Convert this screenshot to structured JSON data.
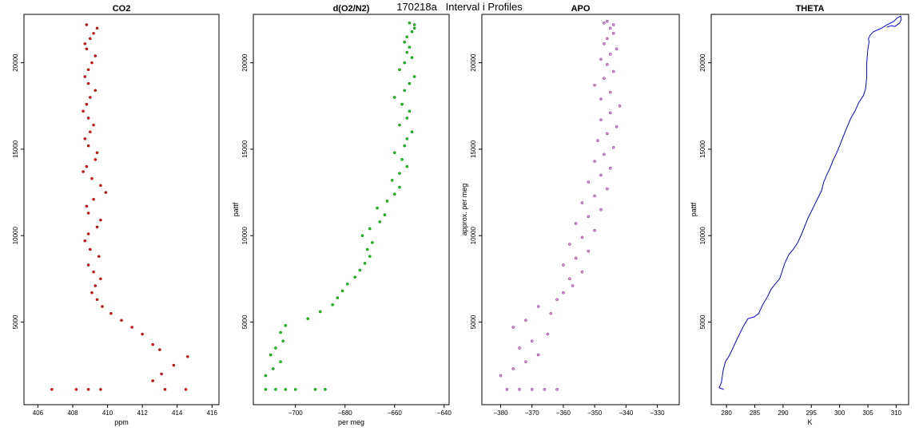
{
  "figure": {
    "title": "170218a   Interval i Profiles"
  },
  "chart_data": [
    {
      "type": "scatter",
      "title": "CO2",
      "xlabel": "ppm",
      "ylabel": "",
      "xlim": [
        405.2,
        416.4
      ],
      "ylim": [
        220,
        22800
      ],
      "xticks": [
        406,
        408,
        410,
        412,
        414,
        416
      ],
      "yticks": [
        5000,
        10000,
        15000,
        20000
      ],
      "color": "#ff0000",
      "series": [
        {
          "name": "",
          "x": [
            406.8,
            408.2,
            409.6,
            408.9,
            413.3,
            414.5,
            412.6,
            413.1,
            413.8,
            414.6,
            413.0,
            412.6,
            412.0,
            411.4,
            410.8,
            410.2,
            409.7,
            409.4,
            409.1,
            409.3,
            409.6,
            409.2,
            408.9,
            409.5,
            409.0,
            408.7,
            408.9,
            409.4,
            409.6,
            408.9,
            408.8,
            409.2,
            409.9,
            409.6,
            409.1,
            408.6,
            408.8,
            409.3,
            409.4,
            408.9,
            408.7,
            409.0,
            409.2,
            408.9,
            408.6,
            408.8,
            409.0,
            409.3,
            408.9,
            408.7,
            408.9,
            409.1,
            409.3,
            408.8,
            408.7,
            409.0,
            409.2,
            409.4,
            408.8
          ],
          "y": [
            1100,
            1100,
            1100,
            1100,
            1100,
            1100,
            1600,
            2000,
            2500,
            3000,
            3400,
            3700,
            4300,
            4700,
            5100,
            5500,
            5900,
            6300,
            6700,
            7100,
            7500,
            7900,
            8300,
            8800,
            9200,
            9700,
            10100,
            10500,
            10900,
            11300,
            11700,
            12100,
            12500,
            12900,
            13300,
            13700,
            14000,
            14400,
            14800,
            15200,
            15600,
            16000,
            16400,
            16800,
            17200,
            17600,
            18000,
            18400,
            18800,
            19200,
            19600,
            20000,
            20400,
            20800,
            21100,
            21400,
            21700,
            22000,
            22200
          ]
        }
      ]
    },
    {
      "type": "scatter",
      "title": "d(O2/N2)",
      "xlabel": "per meg",
      "ylabel": "pattf",
      "xlim": [
        -717,
        -638
      ],
      "ylim": [
        220,
        22800
      ],
      "xticks": [
        -700,
        -680,
        -660,
        -640
      ],
      "yticks": [
        5000,
        10000,
        15000,
        20000
      ],
      "color": "#00dd00",
      "series": [
        {
          "name": "",
          "x": [
            -712,
            -708,
            -704,
            -700,
            -692,
            -688,
            -712,
            -709,
            -706,
            -710,
            -708,
            -705,
            -706,
            -704,
            -695,
            -690,
            -685,
            -683,
            -681,
            -679,
            -676,
            -674,
            -672,
            -670,
            -671,
            -669,
            -673,
            -670,
            -666,
            -664,
            -667,
            -663,
            -660,
            -658,
            -661,
            -658,
            -655,
            -657,
            -660,
            -656,
            -655,
            -653,
            -658,
            -655,
            -654,
            -657,
            -660,
            -656,
            -654,
            -652,
            -658,
            -656,
            -653,
            -655,
            -654,
            -656,
            -655,
            -653,
            -652,
            -652,
            -654
          ],
          "y": [
            1100,
            1100,
            1100,
            1100,
            1100,
            1100,
            1900,
            2300,
            2700,
            3100,
            3500,
            3900,
            4400,
            4800,
            5200,
            5600,
            6000,
            6400,
            6800,
            7200,
            7600,
            8000,
            8400,
            8800,
            9200,
            9600,
            10000,
            10400,
            10800,
            11200,
            11600,
            12000,
            12400,
            12800,
            13200,
            13600,
            14000,
            14400,
            14800,
            15200,
            15600,
            16000,
            16400,
            16800,
            17200,
            17600,
            18000,
            18400,
            18800,
            19200,
            19600,
            20000,
            20300,
            20600,
            20900,
            21200,
            21500,
            21800,
            22000,
            22200,
            22300
          ]
        }
      ]
    },
    {
      "type": "scatter",
      "title": "APO",
      "xlabel": "",
      "ylabel": "approx. per meg",
      "xlim": [
        -386,
        -323
      ],
      "ylim": [
        220,
        22800
      ],
      "xticks": [
        -380,
        -370,
        -360,
        -350,
        -340,
        -330
      ],
      "yticks": [
        5000,
        10000,
        15000,
        20000
      ],
      "color": "#ee82ee",
      "series": [
        {
          "name": "",
          "x": [
            -378,
            -374,
            -370,
            -366,
            -362,
            -380,
            -376,
            -372,
            -368,
            -374,
            -370,
            -365,
            -376,
            -372,
            -364,
            -368,
            -362,
            -360,
            -357,
            -358,
            -354,
            -360,
            -356,
            -352,
            -358,
            -354,
            -350,
            -356,
            -352,
            -348,
            -354,
            -350,
            -346,
            -352,
            -348,
            -345,
            -350,
            -347,
            -344,
            -349,
            -346,
            -343,
            -348,
            -345,
            -342,
            -348,
            -345,
            -350,
            -347,
            -344,
            -346,
            -348,
            -345,
            -343,
            -347,
            -346,
            -344,
            -345,
            -344,
            -347,
            -346
          ],
          "y": [
            1100,
            1100,
            1100,
            1100,
            1100,
            1900,
            2300,
            2700,
            3100,
            3500,
            3900,
            4300,
            4700,
            5100,
            5500,
            5900,
            6300,
            6700,
            7100,
            7500,
            7900,
            8300,
            8700,
            9100,
            9500,
            9900,
            10300,
            10700,
            11100,
            11500,
            11900,
            12300,
            12700,
            13100,
            13500,
            13900,
            14300,
            14700,
            15100,
            15500,
            15900,
            16300,
            16700,
            17100,
            17500,
            17900,
            18300,
            18700,
            19100,
            19500,
            19900,
            20200,
            20500,
            20800,
            21100,
            21400,
            21700,
            22000,
            22200,
            22300,
            22400
          ]
        }
      ]
    },
    {
      "type": "line",
      "title": "THETA",
      "xlabel": "K",
      "ylabel": "pattf",
      "xlim": [
        277.3,
        312.2
      ],
      "ylim": [
        220,
        22800
      ],
      "xticks": [
        280,
        285,
        290,
        295,
        300,
        305,
        310
      ],
      "yticks": [
        5000,
        10000,
        15000,
        20000
      ],
      "color": "#0000ff",
      "series": [
        {
          "name": "",
          "x": [
            279.5,
            278.7,
            279.1,
            279.4,
            279.8,
            280.4,
            281.0,
            281.7,
            282.3,
            282.9,
            283.8,
            284.9,
            285.7,
            286.4,
            287.3,
            287.9,
            288.6,
            289.4,
            289.8,
            290.3,
            291.0,
            291.8,
            292.6,
            293.3,
            293.9,
            294.4,
            295.0,
            295.6,
            296.2,
            296.8,
            297.2,
            297.7,
            298.3,
            298.9,
            299.5,
            300.0,
            300.6,
            301.1,
            301.6,
            302.0,
            302.7,
            303.4,
            304.2,
            304.6,
            304.8,
            304.8,
            305.0,
            305.2,
            305.1,
            305.4,
            306.0,
            306.7,
            307.4,
            307.9,
            308.4,
            309.0,
            309.6,
            310.2,
            310.8,
            310.9,
            310.6,
            309.8,
            309.1,
            308.4
          ],
          "y": [
            1100,
            1200,
            1500,
            2200,
            2700,
            3000,
            3400,
            3900,
            4300,
            4700,
            5200,
            5300,
            5500,
            6000,
            6500,
            6900,
            7200,
            7500,
            7900,
            8400,
            8900,
            9200,
            9600,
            10100,
            10600,
            11000,
            11400,
            11800,
            12200,
            12600,
            13100,
            13500,
            13900,
            14400,
            14800,
            15200,
            15700,
            16100,
            16500,
            16800,
            17200,
            17700,
            18100,
            18500,
            19200,
            20000,
            20800,
            21200,
            21400,
            21600,
            21800,
            21900,
            22000,
            22100,
            22200,
            22300,
            22400,
            22600,
            22700,
            22500,
            22300,
            22100,
            22150,
            22050
          ]
        }
      ]
    }
  ]
}
